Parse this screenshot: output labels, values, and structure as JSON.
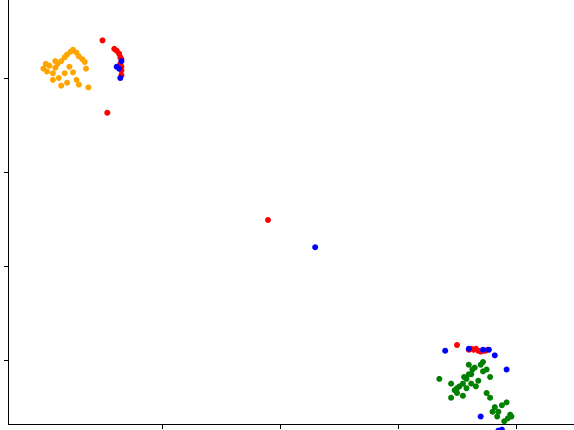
{
  "chart_data": {
    "type": "scatter",
    "title": "",
    "xlabel": "",
    "ylabel": "",
    "xlim": [
      -0.3,
      4.49
    ],
    "ylim": [
      -0.68,
      3.83
    ],
    "x_ticks": [
      1,
      2,
      3,
      4
    ],
    "y_ticks": [
      0,
      1,
      2,
      3
    ],
    "tick_labels_visible": false,
    "grid": false,
    "legend": "none",
    "series": [
      {
        "color": "#FFA500",
        "points": [
          [
            0.0,
            3.1
          ],
          [
            0.05,
            3.13
          ],
          [
            0.03,
            3.07
          ],
          [
            0.08,
            3.05
          ],
          [
            0.1,
            3.11
          ],
          [
            0.12,
            3.15
          ],
          [
            0.15,
            3.18
          ],
          [
            0.18,
            3.22
          ],
          [
            0.2,
            3.25
          ],
          [
            0.23,
            3.28
          ],
          [
            0.25,
            3.3
          ],
          [
            0.28,
            3.27
          ],
          [
            0.3,
            3.23
          ],
          [
            0.33,
            3.2
          ],
          [
            0.35,
            3.17
          ],
          [
            0.22,
            3.12
          ],
          [
            0.18,
            3.05
          ],
          [
            0.13,
            3.0
          ],
          [
            0.2,
            2.95
          ],
          [
            0.28,
            2.98
          ],
          [
            0.3,
            2.93
          ],
          [
            0.38,
            2.9
          ],
          [
            0.08,
            2.98
          ],
          [
            0.15,
            2.92
          ],
          [
            0.25,
            3.06
          ],
          [
            0.36,
            3.1
          ],
          [
            0.1,
            3.18
          ],
          [
            0.02,
            3.15
          ]
        ]
      },
      {
        "color": "#FF0000",
        "points": [
          [
            0.5,
            3.4
          ],
          [
            0.6,
            3.31
          ],
          [
            0.62,
            3.29
          ],
          [
            0.64,
            3.26
          ],
          [
            0.65,
            3.22
          ],
          [
            0.66,
            3.2
          ],
          [
            0.65,
            3.15
          ],
          [
            0.66,
            3.12
          ],
          [
            0.66,
            3.08
          ],
          [
            0.66,
            3.03
          ],
          [
            0.54,
            2.63
          ],
          [
            1.9,
            1.49
          ],
          [
            3.5,
            0.16
          ],
          [
            3.6,
            0.11
          ],
          [
            3.62,
            0.12
          ],
          [
            3.64,
            0.11
          ],
          [
            3.66,
            0.12
          ],
          [
            3.68,
            0.1
          ],
          [
            3.7,
            0.09
          ],
          [
            3.72,
            0.1
          ],
          [
            3.74,
            0.1
          ],
          [
            3.76,
            0.11
          ]
        ]
      },
      {
        "color": "#0000FF",
        "points": [
          [
            0.66,
            3.18
          ],
          [
            0.64,
            3.1
          ],
          [
            0.62,
            3.12
          ],
          [
            0.65,
            3.0
          ],
          [
            2.3,
            1.2
          ],
          [
            3.4,
            0.1
          ],
          [
            3.6,
            0.12
          ],
          [
            3.72,
            0.11
          ],
          [
            3.77,
            0.11
          ],
          [
            3.82,
            0.05
          ],
          [
            3.92,
            -0.1
          ],
          [
            3.7,
            -0.6
          ],
          [
            3.85,
            -0.75
          ],
          [
            3.88,
            -0.74
          ]
        ]
      },
      {
        "color": "#008000",
        "points": [
          [
            3.35,
            -0.2
          ],
          [
            3.45,
            -0.25
          ],
          [
            3.5,
            -0.3
          ],
          [
            3.52,
            -0.28
          ],
          [
            3.55,
            -0.25
          ],
          [
            3.58,
            -0.2
          ],
          [
            3.6,
            -0.15
          ],
          [
            3.63,
            -0.1
          ],
          [
            3.65,
            -0.08
          ],
          [
            3.7,
            -0.05
          ],
          [
            3.72,
            -0.02
          ],
          [
            3.75,
            -0.1
          ],
          [
            3.78,
            -0.18
          ],
          [
            3.6,
            -0.05
          ],
          [
            3.58,
            -0.3
          ],
          [
            3.62,
            -0.25
          ],
          [
            3.45,
            -0.4
          ],
          [
            3.5,
            -0.35
          ],
          [
            3.66,
            -0.28
          ],
          [
            3.72,
            -0.12
          ],
          [
            3.75,
            -0.35
          ],
          [
            3.82,
            -0.5
          ],
          [
            3.85,
            -0.55
          ],
          [
            3.88,
            -0.48
          ],
          [
            3.92,
            -0.45
          ],
          [
            3.95,
            -0.58
          ],
          [
            3.9,
            -0.65
          ],
          [
            3.93,
            -0.62
          ],
          [
            3.96,
            -0.6
          ],
          [
            3.8,
            -0.55
          ],
          [
            3.84,
            -0.6
          ],
          [
            3.78,
            -0.4
          ],
          [
            3.55,
            -0.38
          ],
          [
            3.48,
            -0.32
          ],
          [
            3.68,
            -0.22
          ],
          [
            3.62,
            -0.15
          ],
          [
            3.56,
            -0.18
          ]
        ]
      }
    ]
  }
}
